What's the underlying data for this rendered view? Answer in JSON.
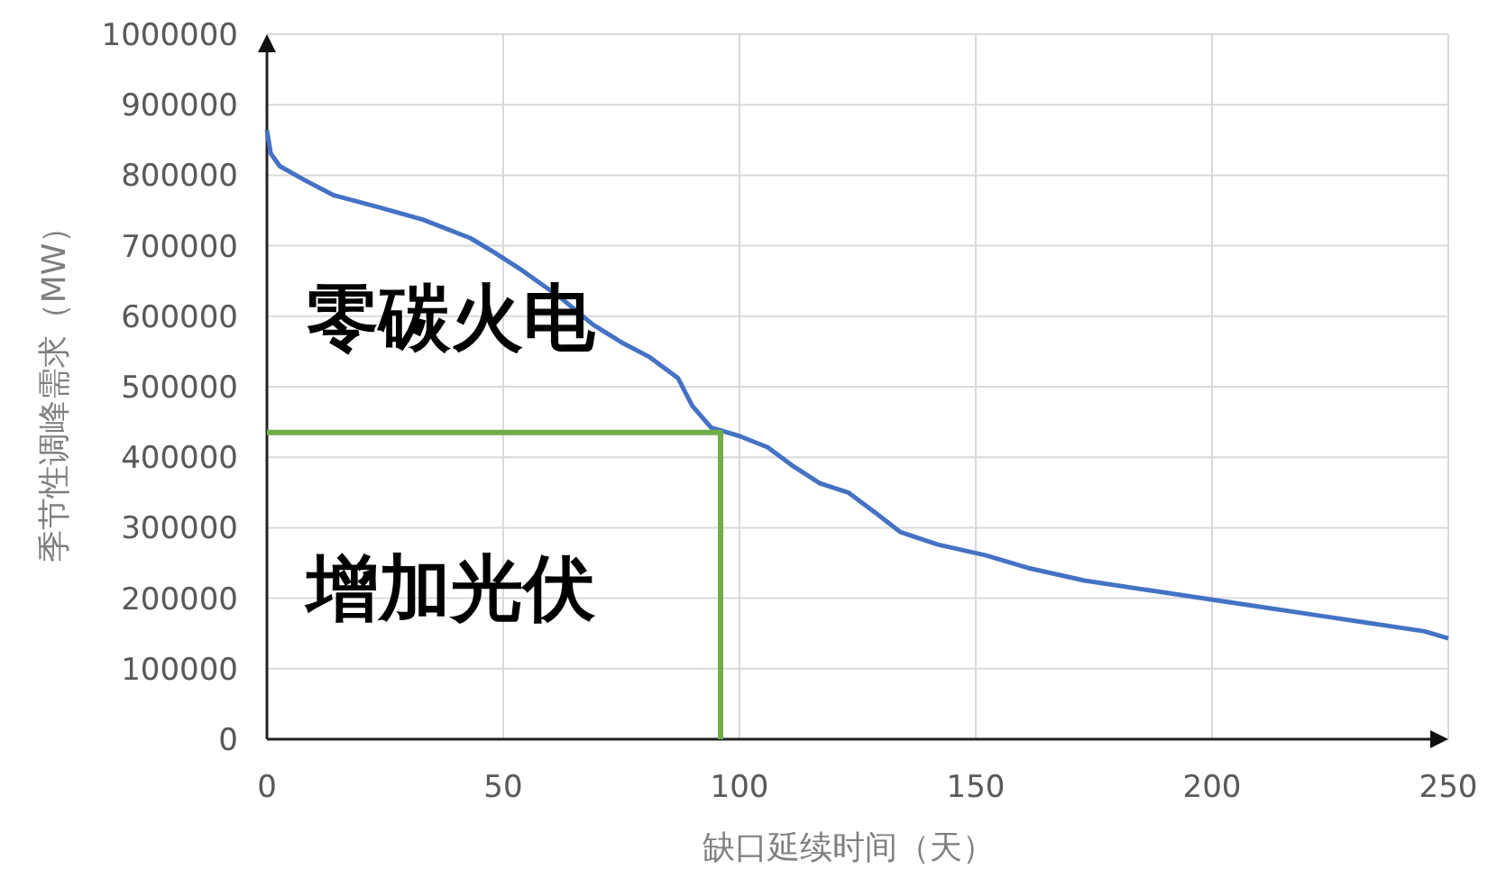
{
  "chart_data": {
    "type": "line",
    "xlabel": "缺口延续时间（天）",
    "ylabel": "季节性调峰需求（MW）",
    "xlim": [
      0,
      250
    ],
    "xticks": [
      0,
      50,
      100,
      150,
      200,
      250
    ],
    "ylim": [
      0,
      1000000
    ],
    "yticks": [
      0,
      100000,
      200000,
      300000,
      400000,
      500000,
      600000,
      700000,
      800000,
      900000,
      1000000
    ],
    "grid": true,
    "series": [
      {
        "color": "#4472c4",
        "x": [
          0,
          0.8,
          2.7,
          8,
          14,
          24,
          33,
          43,
          48,
          54,
          62,
          69,
          75,
          81,
          87,
          90,
          94,
          100,
          106,
          111,
          117,
          123,
          129,
          134,
          142,
          152,
          161,
          173,
          188,
          201,
          211,
          222,
          234,
          245,
          250
        ],
        "values": [
          864000,
          831000,
          813000,
          793000,
          772000,
          754000,
          737000,
          711000,
          691000,
          665000,
          627000,
          588000,
          563000,
          542000,
          512000,
          473000,
          442000,
          430000,
          414000,
          389000,
          363000,
          350000,
          320000,
          294000,
          276000,
          261000,
          243000,
          225000,
          210000,
          197000,
          187000,
          176000,
          164000,
          153000,
          143000
        ]
      },
      {
        "color": "#70ad47",
        "x": [
          0,
          96,
          96
        ],
        "values": [
          435000,
          435000,
          0
        ]
      }
    ],
    "annotations": [
      {
        "text": "零碳火电"
      },
      {
        "text": "增加光伏"
      }
    ]
  }
}
